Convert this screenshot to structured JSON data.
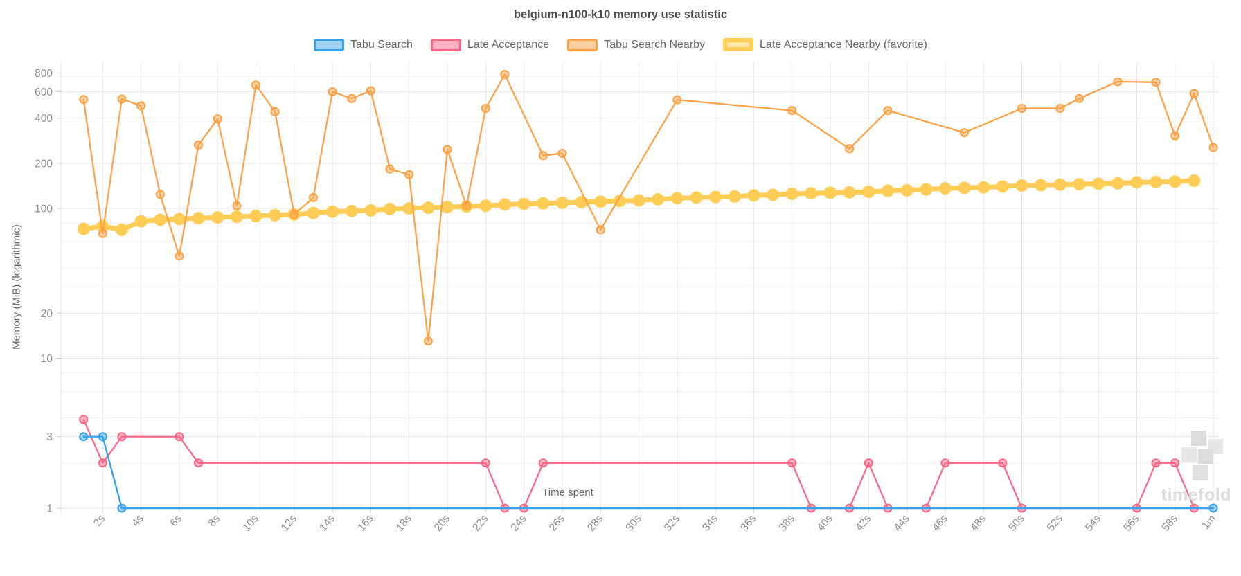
{
  "title": "belgium-n100-k10 memory use statistic",
  "watermark": "timefold",
  "legend": [
    {
      "label": "Tabu Search",
      "color": "#36A2EB",
      "fill": "#9FD0F5",
      "thick": false
    },
    {
      "label": "Late Acceptance",
      "color": "#FF6384",
      "fill": "#FFB1C1",
      "thick": false
    },
    {
      "label": "Tabu Search Nearby",
      "color": "#FF9F40",
      "fill": "#FFCF9F",
      "thick": false
    },
    {
      "label": "Late Acceptance Nearby (favorite)",
      "color": "#FFCD56",
      "fill": "#FFE6AA",
      "thick": true
    }
  ],
  "axes": {
    "x_title": "Time spent",
    "y_title": "Memory (MiB) (logarithmic)",
    "x_ticks": [
      {
        "t": 2,
        "label": "2s"
      },
      {
        "t": 4,
        "label": "4s"
      },
      {
        "t": 6,
        "label": "6s"
      },
      {
        "t": 8,
        "label": "8s"
      },
      {
        "t": 10,
        "label": "10s"
      },
      {
        "t": 12,
        "label": "12s"
      },
      {
        "t": 14,
        "label": "14s"
      },
      {
        "t": 16,
        "label": "16s"
      },
      {
        "t": 18,
        "label": "18s"
      },
      {
        "t": 20,
        "label": "20s"
      },
      {
        "t": 22,
        "label": "22s"
      },
      {
        "t": 24,
        "label": "24s"
      },
      {
        "t": 26,
        "label": "26s"
      },
      {
        "t": 28,
        "label": "28s"
      },
      {
        "t": 30,
        "label": "30s"
      },
      {
        "t": 32,
        "label": "32s"
      },
      {
        "t": 34,
        "label": "34s"
      },
      {
        "t": 36,
        "label": "36s"
      },
      {
        "t": 38,
        "label": "38s"
      },
      {
        "t": 40,
        "label": "40s"
      },
      {
        "t": 42,
        "label": "42s"
      },
      {
        "t": 44,
        "label": "44s"
      },
      {
        "t": 46,
        "label": "46s"
      },
      {
        "t": 48,
        "label": "48s"
      },
      {
        "t": 50,
        "label": "50s"
      },
      {
        "t": 52,
        "label": "52s"
      },
      {
        "t": 54,
        "label": "54s"
      },
      {
        "t": 56,
        "label": "56s"
      },
      {
        "t": 58,
        "label": "58s"
      },
      {
        "t": 60,
        "label": "1m"
      }
    ],
    "y_major_ticks": [
      {
        "v": 800,
        "label": "800"
      },
      {
        "v": 600,
        "label": "600"
      },
      {
        "v": 400,
        "label": "400"
      },
      {
        "v": 200,
        "label": "200"
      },
      {
        "v": 100,
        "label": "100"
      },
      {
        "v": 20,
        "label": "20"
      },
      {
        "v": 10,
        "label": "10"
      },
      {
        "v": 3,
        "label": "3"
      },
      {
        "v": 1,
        "label": "1"
      }
    ],
    "y_minor_ticks": [
      80,
      60,
      40,
      30,
      8,
      6,
      4,
      2
    ]
  },
  "chart_data": {
    "type": "line",
    "x_unit": "seconds",
    "x_range": [
      0,
      61
    ],
    "y_scale": "log10",
    "y_range": [
      1,
      900
    ],
    "grid": true,
    "legend_position": "top",
    "series": [
      {
        "name": "Late Acceptance Nearby (favorite)",
        "color": "#FFCD56",
        "style": {
          "line_width": 7,
          "point_radius": 9,
          "point_solid": true
        },
        "points": [
          [
            1,
            73
          ],
          [
            2,
            76
          ],
          [
            3,
            72
          ],
          [
            4,
            82
          ],
          [
            5,
            84
          ],
          [
            6,
            85
          ],
          [
            7,
            86
          ],
          [
            8,
            87
          ],
          [
            9,
            88
          ],
          [
            10,
            89
          ],
          [
            11,
            90
          ],
          [
            12,
            91
          ],
          [
            13,
            93
          ],
          [
            14,
            95
          ],
          [
            15,
            96
          ],
          [
            16,
            97
          ],
          [
            17,
            99
          ],
          [
            18,
            100
          ],
          [
            19,
            101
          ],
          [
            20,
            102
          ],
          [
            21,
            103
          ],
          [
            22,
            104
          ],
          [
            23,
            106
          ],
          [
            24,
            107
          ],
          [
            25,
            108
          ],
          [
            26,
            109
          ],
          [
            27,
            110
          ],
          [
            28,
            111
          ],
          [
            29,
            112
          ],
          [
            30,
            113
          ],
          [
            31,
            115
          ],
          [
            32,
            117
          ],
          [
            33,
            118
          ],
          [
            34,
            119
          ],
          [
            35,
            120
          ],
          [
            36,
            122
          ],
          [
            37,
            123
          ],
          [
            38,
            125
          ],
          [
            39,
            126
          ],
          [
            40,
            127
          ],
          [
            41,
            128
          ],
          [
            42,
            129
          ],
          [
            43,
            131
          ],
          [
            44,
            132
          ],
          [
            45,
            134
          ],
          [
            46,
            136
          ],
          [
            47,
            137
          ],
          [
            48,
            138
          ],
          [
            49,
            140
          ],
          [
            50,
            142
          ],
          [
            51,
            143
          ],
          [
            52,
            144
          ],
          [
            53,
            145
          ],
          [
            54,
            146
          ],
          [
            55,
            147
          ],
          [
            56,
            149
          ],
          [
            57,
            150
          ],
          [
            58,
            151
          ],
          [
            59,
            153
          ]
        ]
      },
      {
        "name": "Tabu Search Nearby",
        "color": "#FF9F40",
        "style": {
          "line_width": 2.2,
          "point_radius": 5.5,
          "point_solid": false
        },
        "points": [
          [
            1,
            533
          ],
          [
            2,
            68
          ],
          [
            3,
            537
          ],
          [
            4,
            483
          ],
          [
            5,
            124
          ],
          [
            6,
            48
          ],
          [
            7,
            265
          ],
          [
            8,
            395
          ],
          [
            9,
            104
          ],
          [
            10,
            665
          ],
          [
            11,
            442
          ],
          [
            12,
            91
          ],
          [
            13,
            118
          ],
          [
            14,
            600
          ],
          [
            15,
            540
          ],
          [
            16,
            610
          ],
          [
            17,
            183
          ],
          [
            18,
            168
          ],
          [
            19,
            13
          ],
          [
            20,
            247
          ],
          [
            21,
            104
          ],
          [
            22,
            465
          ],
          [
            23,
            782
          ],
          [
            25,
            225
          ],
          [
            26,
            233
          ],
          [
            28,
            72
          ],
          [
            32,
            530
          ],
          [
            38,
            450
          ],
          [
            41,
            250
          ],
          [
            43,
            450
          ],
          [
            47,
            320
          ],
          [
            50,
            465
          ],
          [
            52,
            465
          ],
          [
            53,
            540
          ],
          [
            55,
            700
          ],
          [
            57,
            695
          ],
          [
            58,
            305
          ],
          [
            59,
            584
          ],
          [
            60,
            255
          ]
        ]
      },
      {
        "name": "Late Acceptance",
        "color": "#FF6384",
        "style": {
          "line_width": 2.2,
          "point_radius": 5.5,
          "point_solid": false
        },
        "points": [
          [
            1,
            3.9
          ],
          [
            2,
            2
          ],
          [
            3,
            3
          ],
          [
            6,
            3
          ],
          [
            7,
            2
          ],
          [
            22,
            2
          ],
          [
            23,
            1
          ],
          [
            24,
            1
          ],
          [
            25,
            2
          ],
          [
            38,
            2
          ],
          [
            39,
            1
          ],
          [
            41,
            1
          ],
          [
            42,
            2
          ],
          [
            43,
            1
          ],
          [
            45,
            1
          ],
          [
            46,
            2
          ],
          [
            49,
            2
          ],
          [
            50,
            1
          ],
          [
            56,
            1
          ],
          [
            57,
            2
          ],
          [
            58,
            2
          ],
          [
            59,
            1
          ]
        ]
      },
      {
        "name": "Tabu Search",
        "color": "#36A2EB",
        "style": {
          "line_width": 2.4,
          "point_radius": 5.5,
          "point_solid": false
        },
        "points": [
          [
            1,
            3
          ],
          [
            2,
            3
          ],
          [
            3,
            1
          ],
          [
            60,
            1
          ]
        ]
      }
    ]
  }
}
